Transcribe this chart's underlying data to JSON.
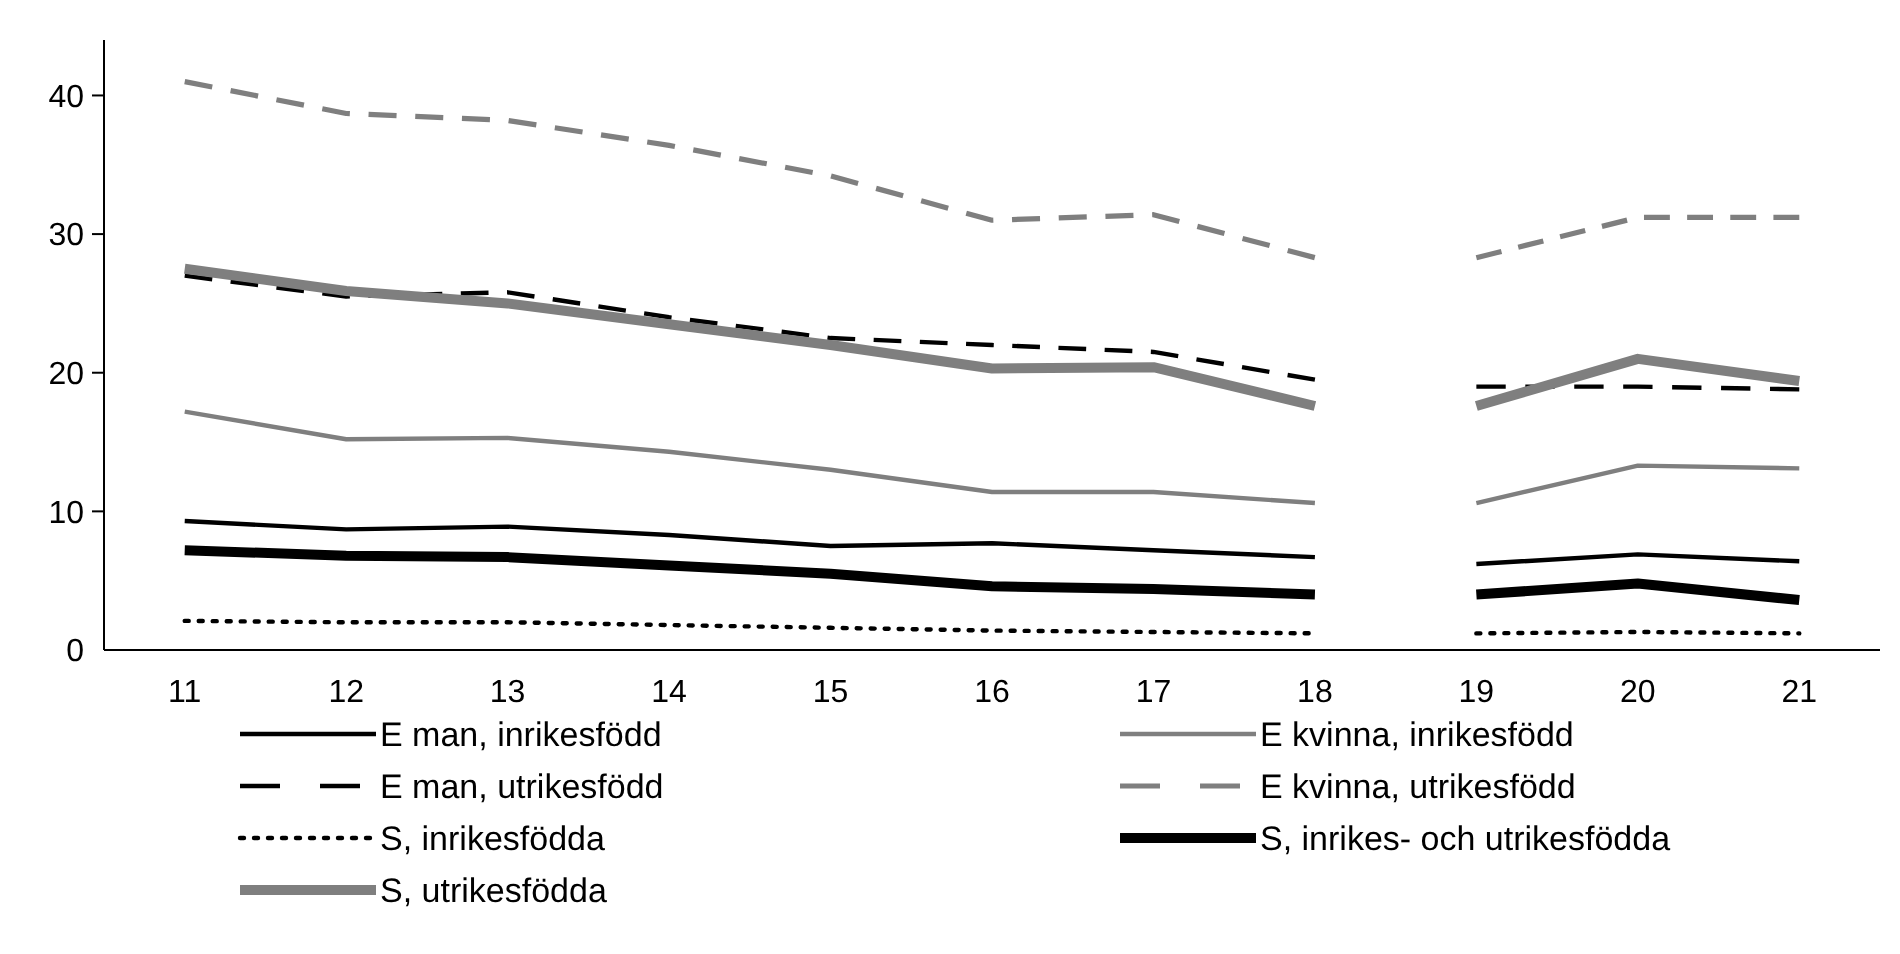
{
  "chart_data": {
    "type": "line",
    "xlim": [
      10.5,
      21.5
    ],
    "xticks": [
      11,
      12,
      13,
      14,
      15,
      16,
      17,
      18,
      19,
      20,
      21
    ],
    "ylim": [
      0,
      44
    ],
    "yticks": [
      0,
      10,
      20,
      30,
      40
    ],
    "grid": false,
    "legend": "bottom",
    "series": [
      {
        "name": "E man, inrikesfödd",
        "color": "#000000",
        "line_style": "solid",
        "x": [
          11,
          12,
          13,
          14,
          15,
          16,
          17,
          18
        ],
        "values": [
          9.3,
          8.7,
          8.9,
          8.3,
          7.5,
          7.7,
          7.2,
          6.7
        ]
      },
      {
        "name": "E kvinna, inrikesfödd",
        "color": "#7f7f7f",
        "line_style": "solid",
        "x": [
          11,
          12,
          13,
          14,
          15,
          16,
          17,
          18
        ],
        "values": [
          17.2,
          15.2,
          15.3,
          14.3,
          13.0,
          11.4,
          11.4,
          10.6
        ]
      },
      {
        "name": "E man, utrikesfödd",
        "color": "#000000",
        "line_style": "dashed",
        "x": [
          11,
          12,
          13,
          14,
          15,
          16,
          17,
          18
        ],
        "values": [
          27.0,
          25.5,
          25.8,
          24.0,
          22.5,
          22.0,
          21.5,
          19.5
        ]
      },
      {
        "name": "E kvinna, utrikesfödd",
        "color": "#7f7f7f",
        "line_style": "dashed",
        "x": [
          11,
          12,
          13,
          14,
          15,
          16,
          17,
          18
        ],
        "values": [
          41.0,
          38.7,
          38.2,
          36.4,
          34.2,
          31.0,
          31.4,
          28.3
        ]
      },
      {
        "name": "S, inrikesfödda",
        "color": "#000000",
        "line_style": "dotted",
        "x": [
          11,
          12,
          13,
          14,
          15,
          16,
          17,
          18
        ],
        "values": [
          2.1,
          2.0,
          2.0,
          1.8,
          1.6,
          1.4,
          1.3,
          1.2
        ]
      },
      {
        "name": "S, inrikes- och utrikesfödda",
        "color": "#000000",
        "line_style": "solid",
        "x": [
          11,
          12,
          13,
          14,
          15,
          16,
          17,
          18
        ],
        "values": [
          7.2,
          6.8,
          6.7,
          6.1,
          5.5,
          4.6,
          4.4,
          4.0
        ]
      },
      {
        "name": "S, utrikesfödda",
        "color": "#7f7f7f",
        "line_style": "solid",
        "x": [
          11,
          12,
          13,
          14,
          15,
          16,
          17,
          18
        ],
        "values": [
          27.5,
          25.9,
          25.0,
          23.5,
          22.0,
          20.3,
          20.4,
          17.6
        ]
      },
      {
        "color": "#000000",
        "line_style": "solid",
        "x": [
          19,
          20,
          21
        ],
        "values": [
          6.2,
          6.9,
          6.4
        ]
      },
      {
        "color": "#7f7f7f",
        "line_style": "solid",
        "x": [
          19,
          20,
          21
        ],
        "values": [
          10.6,
          13.3,
          13.1
        ]
      },
      {
        "color": "#000000",
        "line_style": "dashed",
        "x": [
          19,
          20,
          21
        ],
        "values": [
          19.0,
          19.0,
          18.8
        ]
      },
      {
        "color": "#7f7f7f",
        "line_style": "dashed",
        "x": [
          19,
          20,
          21
        ],
        "values": [
          28.3,
          31.2,
          31.2
        ]
      },
      {
        "color": "#000000",
        "line_style": "dotted",
        "x": [
          19,
          20,
          21
        ],
        "values": [
          1.2,
          1.3,
          1.2
        ]
      },
      {
        "color": "#000000",
        "line_style": "solid",
        "x": [
          19,
          20,
          21
        ],
        "values": [
          4.0,
          4.8,
          3.6
        ]
      },
      {
        "color": "#7f7f7f",
        "line_style": "solid",
        "x": [
          19,
          20,
          21
        ],
        "values": [
          17.6,
          21.0,
          19.4
        ]
      }
    ]
  }
}
